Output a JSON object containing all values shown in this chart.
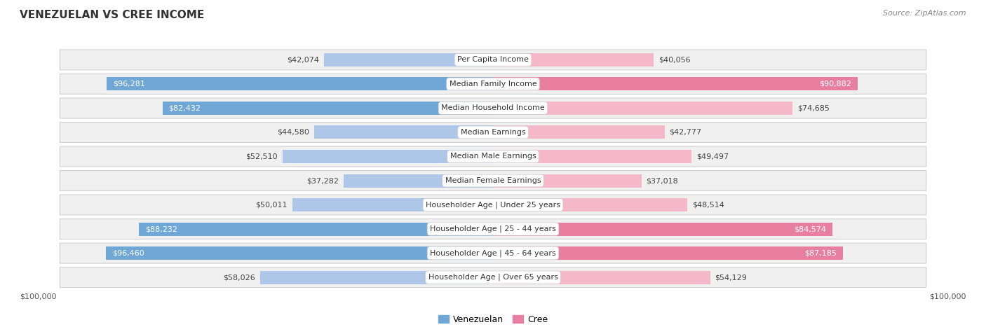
{
  "title": "VENEZUELAN VS CREE INCOME",
  "source": "Source: ZipAtlas.com",
  "categories": [
    "Per Capita Income",
    "Median Family Income",
    "Median Household Income",
    "Median Earnings",
    "Median Male Earnings",
    "Median Female Earnings",
    "Householder Age | Under 25 years",
    "Householder Age | 25 - 44 years",
    "Householder Age | 45 - 64 years",
    "Householder Age | Over 65 years"
  ],
  "venezuelan_values": [
    42074,
    96281,
    82432,
    44580,
    52510,
    37282,
    50011,
    88232,
    96460,
    58026
  ],
  "cree_values": [
    40056,
    90882,
    74685,
    42777,
    49497,
    37018,
    48514,
    84574,
    87185,
    54129
  ],
  "venezuelan_labels": [
    "$42,074",
    "$96,281",
    "$82,432",
    "$44,580",
    "$52,510",
    "$37,282",
    "$50,011",
    "$88,232",
    "$96,460",
    "$58,026"
  ],
  "cree_labels": [
    "$40,056",
    "$90,882",
    "$74,685",
    "$42,777",
    "$49,497",
    "$37,018",
    "$48,514",
    "$84,574",
    "$87,185",
    "$54,129"
  ],
  "venezuelan_color_light": "#aec6e8",
  "venezuelan_color_dark": "#6fa8d6",
  "cree_color_light": "#f4b8c8",
  "cree_color_dark": "#e87fa0",
  "threshold": 0.75,
  "max_value": 100000,
  "background_color": "#ffffff",
  "row_bg_color": "#f0f0f0",
  "row_border_color": "#d0d0d0",
  "axis_label_left": "$100,000",
  "axis_label_right": "$100,000",
  "legend_venezuelan": "Venezuelan",
  "legend_cree": "Cree",
  "title_fontsize": 11,
  "source_fontsize": 8,
  "label_fontsize": 8,
  "cat_fontsize": 8
}
